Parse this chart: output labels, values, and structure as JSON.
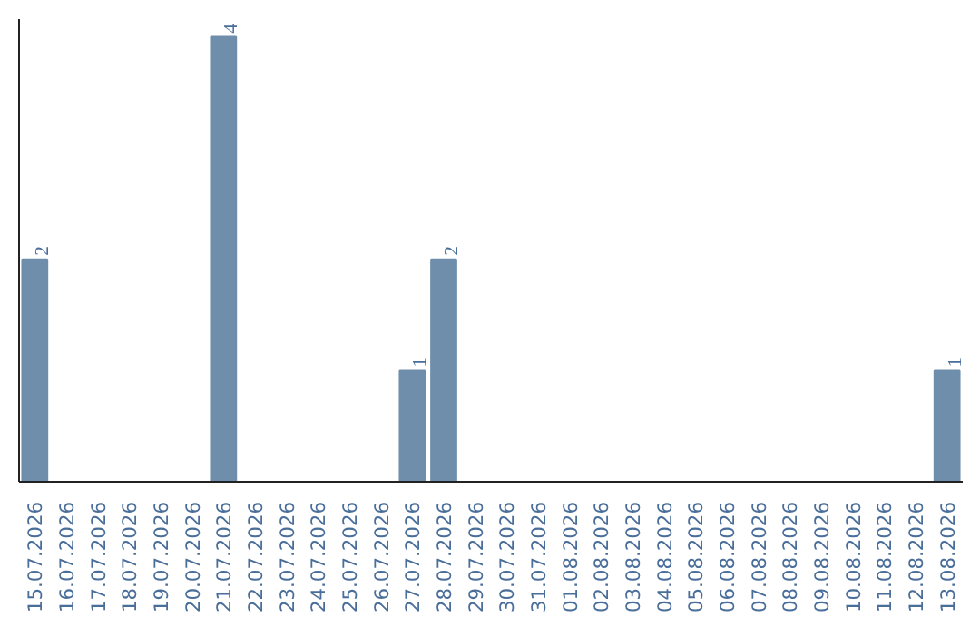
{
  "chart_data": {
    "type": "bar",
    "categories": [
      "15.07.2026",
      "16.07.2026",
      "17.07.2026",
      "18.07.2026",
      "19.07.2026",
      "20.07.2026",
      "21.07.2026",
      "22.07.2026",
      "23.07.2026",
      "24.07.2026",
      "25.07.2026",
      "26.07.2026",
      "27.07.2026",
      "28.07.2026",
      "29.07.2026",
      "30.07.2026",
      "31.07.2026",
      "01.08.2026",
      "02.08.2026",
      "03.08.2026",
      "04.08.2026",
      "05.08.2026",
      "06.08.2026",
      "07.08.2026",
      "08.08.2026",
      "09.08.2026",
      "10.08.2026",
      "11.08.2026",
      "12.08.2026",
      "13.08.2026"
    ],
    "values": [
      2,
      0,
      0,
      0,
      0,
      0,
      4,
      0,
      0,
      0,
      0,
      0,
      1,
      2,
      0,
      0,
      0,
      0,
      0,
      0,
      0,
      0,
      0,
      0,
      0,
      0,
      0,
      0,
      0,
      1
    ],
    "color": "#6e8eab",
    "value_labels": [
      "2",
      null,
      null,
      null,
      null,
      null,
      "4",
      null,
      null,
      null,
      null,
      null,
      "1",
      "2",
      null,
      null,
      null,
      null,
      null,
      null,
      null,
      null,
      null,
      null,
      null,
      null,
      null,
      null,
      null,
      "1"
    ],
    "tick_labels": "x",
    "grid": false
  }
}
